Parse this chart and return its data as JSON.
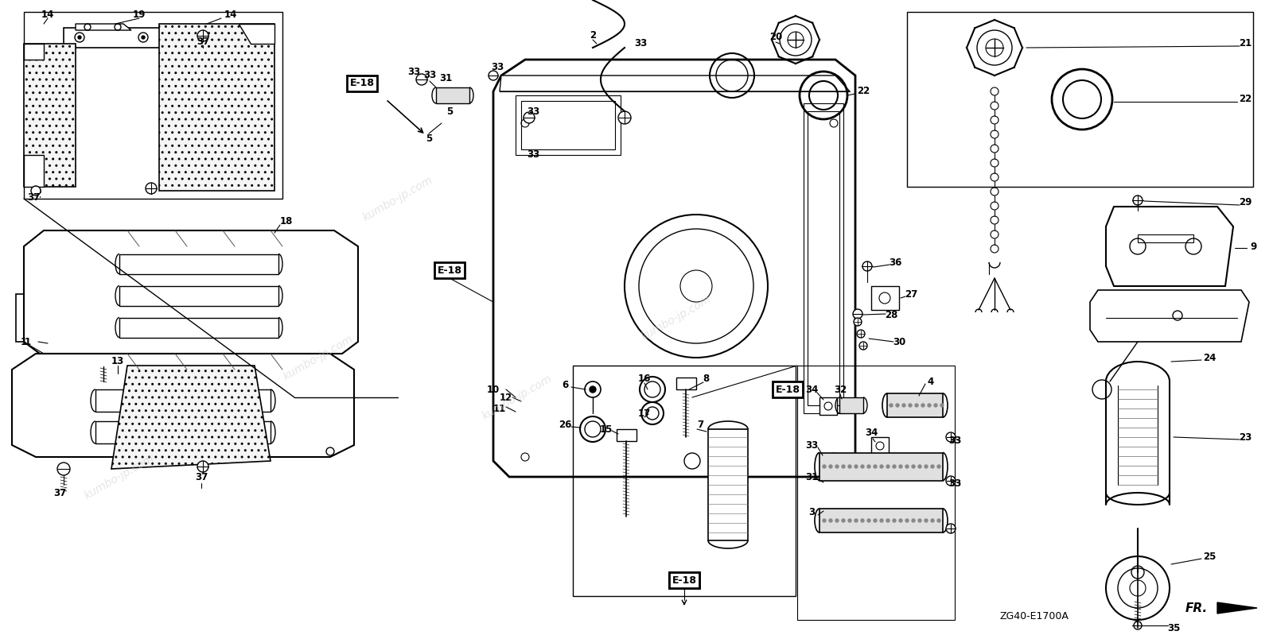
{
  "background_color": "#ffffff",
  "line_color": "#000000",
  "model_code": "ZG40-E1700A",
  "watermark_text": "kumbo-jp.com",
  "figsize": [
    16.0,
    7.99
  ],
  "dpi": 100,
  "xlim": [
    0,
    1600
  ],
  "ylim": [
    0,
    799
  ]
}
